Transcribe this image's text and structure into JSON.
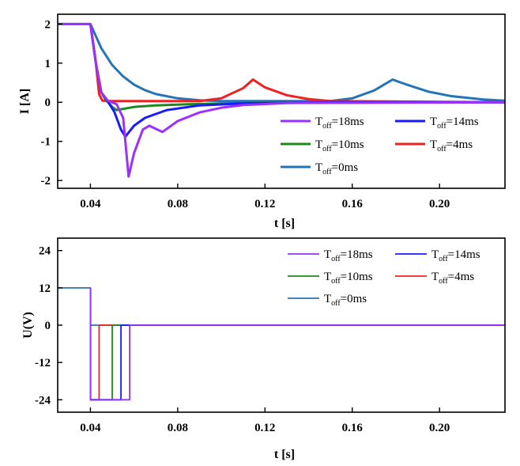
{
  "colors": {
    "Toff18": "#9b30ff",
    "Toff14": "#1a1aff",
    "Toff10": "#1e8a1e",
    "Toff4": "#ee2222",
    "Toff0": "#2474b8"
  },
  "chart_data": [
    {
      "type": "line",
      "title": "",
      "xlabel": "t [s]",
      "ylabel": "I [A]",
      "xlim": [
        0.025,
        0.23
      ],
      "ylim": [
        -2.2,
        2.25
      ],
      "xticks": [
        "0.04",
        "0.08",
        "0.12",
        "0.16",
        "0.20"
      ],
      "xtick_values": [
        0.04,
        0.08,
        0.12,
        0.16,
        0.2
      ],
      "yticks": [
        "2",
        "1",
        "0",
        "-1",
        "-2"
      ],
      "ytick_values": [
        2,
        1,
        0,
        -1,
        -2
      ],
      "legend_position": "lower-right",
      "series": [
        {
          "key": "Toff18",
          "name_main": "T",
          "name_sub": "off",
          "name_rest": "=18ms",
          "points": [
            [
              0.025,
              2.0
            ],
            [
              0.04,
              2.0
            ],
            [
              0.0425,
              1.0
            ],
            [
              0.045,
              0.25
            ],
            [
              0.048,
              0.04
            ],
            [
              0.052,
              -0.05
            ],
            [
              0.055,
              -0.4
            ],
            [
              0.0575,
              -1.9
            ],
            [
              0.06,
              -1.3
            ],
            [
              0.064,
              -0.7
            ],
            [
              0.067,
              -0.6
            ],
            [
              0.07,
              -0.68
            ],
            [
              0.073,
              -0.76
            ],
            [
              0.08,
              -0.48
            ],
            [
              0.09,
              -0.26
            ],
            [
              0.1,
              -0.14
            ],
            [
              0.11,
              -0.07
            ],
            [
              0.13,
              -0.02
            ],
            [
              0.23,
              0.0
            ]
          ]
        },
        {
          "key": "Toff14",
          "name_main": "T",
          "name_sub": "off",
          "name_rest": "=14ms",
          "points": [
            [
              0.04,
              2.0
            ],
            [
              0.0425,
              1.0
            ],
            [
              0.045,
              0.25
            ],
            [
              0.048,
              0.02
            ],
            [
              0.051,
              -0.25
            ],
            [
              0.054,
              -0.7
            ],
            [
              0.056,
              -0.88
            ],
            [
              0.06,
              -0.6
            ],
            [
              0.065,
              -0.4
            ],
            [
              0.075,
              -0.2
            ],
            [
              0.09,
              -0.08
            ],
            [
              0.11,
              -0.03
            ],
            [
              0.15,
              0.0
            ],
            [
              0.23,
              0.0
            ]
          ]
        },
        {
          "key": "Toff10",
          "name_main": "T",
          "name_sub": "off",
          "name_rest": "=10ms",
          "points": [
            [
              0.04,
              2.0
            ],
            [
              0.0425,
              1.0
            ],
            [
              0.045,
              0.25
            ],
            [
              0.047,
              0.06
            ],
            [
              0.05,
              -0.12
            ],
            [
              0.052,
              -0.2
            ],
            [
              0.06,
              -0.12
            ],
            [
              0.07,
              -0.08
            ],
            [
              0.085,
              -0.05
            ],
            [
              0.1,
              -0.03
            ],
            [
              0.13,
              -0.01
            ],
            [
              0.23,
              0.0
            ]
          ]
        },
        {
          "key": "Toff4",
          "name_main": "T",
          "name_sub": "off",
          "name_rest": "=4ms",
          "points": [
            [
              0.04,
              2.0
            ],
            [
              0.0425,
              1.0
            ],
            [
              0.044,
              0.2
            ],
            [
              0.0455,
              0.04
            ],
            [
              0.05,
              0.03
            ],
            [
              0.09,
              0.03
            ],
            [
              0.1,
              0.1
            ],
            [
              0.11,
              0.36
            ],
            [
              0.1145,
              0.58
            ],
            [
              0.12,
              0.38
            ],
            [
              0.13,
              0.18
            ],
            [
              0.14,
              0.08
            ],
            [
              0.15,
              0.03
            ],
            [
              0.23,
              0.0
            ]
          ]
        },
        {
          "key": "Toff0",
          "name_main": "T",
          "name_sub": "off",
          "name_rest": "=0ms",
          "points": [
            [
              0.025,
              2.0
            ],
            [
              0.04,
              2.0
            ],
            [
              0.045,
              1.38
            ],
            [
              0.05,
              0.95
            ],
            [
              0.055,
              0.66
            ],
            [
              0.06,
              0.45
            ],
            [
              0.065,
              0.31
            ],
            [
              0.07,
              0.21
            ],
            [
              0.08,
              0.1
            ],
            [
              0.09,
              0.05
            ],
            [
              0.1,
              0.03
            ],
            [
              0.15,
              0.03
            ],
            [
              0.16,
              0.1
            ],
            [
              0.17,
              0.3
            ],
            [
              0.1785,
              0.58
            ],
            [
              0.185,
              0.45
            ],
            [
              0.195,
              0.27
            ],
            [
              0.205,
              0.16
            ],
            [
              0.22,
              0.07
            ],
            [
              0.23,
              0.04
            ]
          ]
        }
      ]
    },
    {
      "type": "line",
      "title": "",
      "xlabel": "t [s]",
      "ylabel": "U(V)",
      "xlim": [
        0.025,
        0.23
      ],
      "ylim": [
        -28,
        28
      ],
      "xticks": [
        "0.04",
        "0.08",
        "0.12",
        "0.16",
        "0.20"
      ],
      "xtick_values": [
        0.04,
        0.08,
        0.12,
        0.16,
        0.2
      ],
      "yticks": [
        "24",
        "12",
        "0",
        "-12",
        "-24"
      ],
      "ytick_values": [
        24,
        12,
        0,
        -12,
        -24
      ],
      "legend_position": "top-right",
      "series": [
        {
          "key": "Toff18",
          "name_main": "T",
          "name_sub": "off",
          "name_rest": "=18ms",
          "points": [
            [
              0.04,
              12
            ],
            [
              0.04,
              -24
            ],
            [
              0.058,
              -24
            ],
            [
              0.058,
              0
            ],
            [
              0.23,
              0
            ]
          ]
        },
        {
          "key": "Toff14",
          "name_main": "T",
          "name_sub": "off",
          "name_rest": "=14ms",
          "points": [
            [
              0.04,
              12
            ],
            [
              0.04,
              -24
            ],
            [
              0.054,
              -24
            ],
            [
              0.054,
              0
            ],
            [
              0.23,
              0
            ]
          ]
        },
        {
          "key": "Toff10",
          "name_main": "T",
          "name_sub": "off",
          "name_rest": "=10ms",
          "points": [
            [
              0.04,
              12
            ],
            [
              0.04,
              -24
            ],
            [
              0.05,
              -24
            ],
            [
              0.05,
              0
            ],
            [
              0.23,
              0
            ]
          ]
        },
        {
          "key": "Toff4",
          "name_main": "T",
          "name_sub": "off",
          "name_rest": "=4ms",
          "points": [
            [
              0.04,
              12
            ],
            [
              0.04,
              -24
            ],
            [
              0.044,
              -24
            ],
            [
              0.044,
              0
            ],
            [
              0.23,
              0
            ]
          ]
        },
        {
          "key": "Toff0",
          "name_main": "T",
          "name_sub": "off",
          "name_rest": "=0ms",
          "points": [
            [
              0.025,
              12
            ],
            [
              0.04,
              12
            ],
            [
              0.04,
              0
            ],
            [
              0.23,
              0
            ]
          ]
        }
      ]
    }
  ]
}
